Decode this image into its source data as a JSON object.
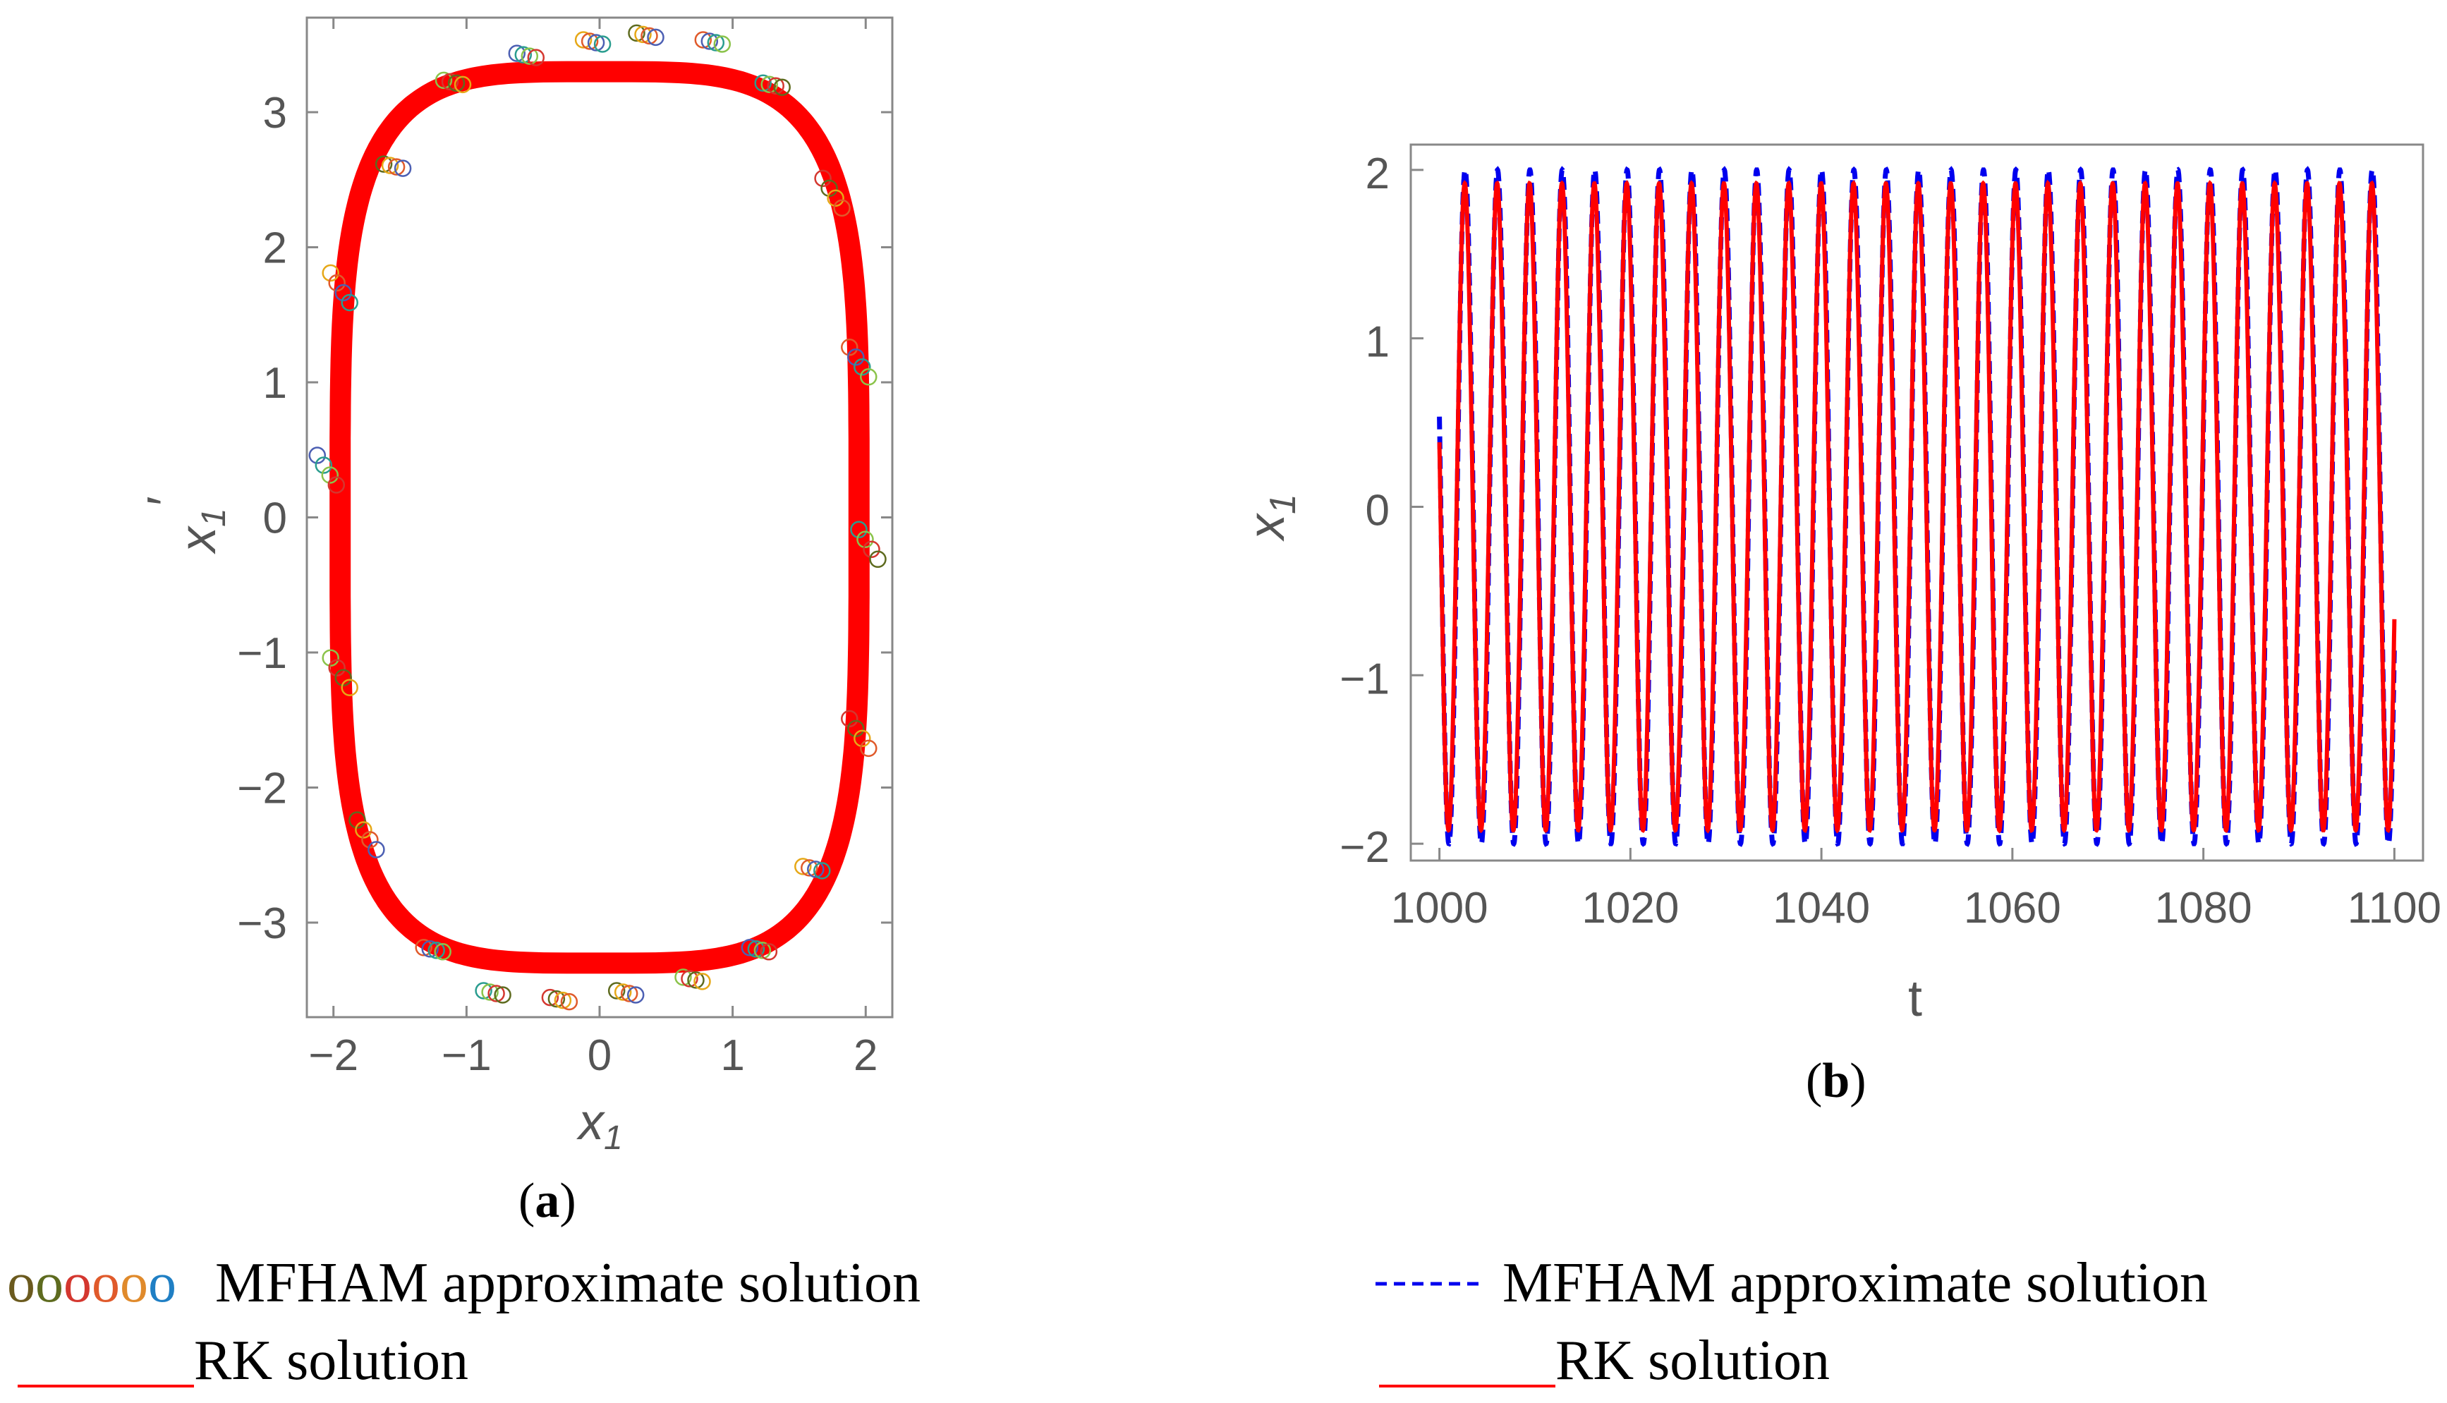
{
  "chart_data": [
    {
      "id": "a",
      "panel_label": "a",
      "type": "scatter",
      "xlabel": "x",
      "xlabel_sub": "1",
      "ylabel": "x",
      "ylabel_sub": "1",
      "ylabel_prime": "′",
      "xlim": [
        -2.2,
        2.2
      ],
      "ylim": [
        -3.7,
        3.7
      ],
      "xticks": [
        -2,
        -1,
        0,
        1,
        2
      ],
      "yticks": [
        3,
        2,
        1,
        0,
        -1,
        -2,
        -3
      ],
      "rk_curve": {
        "a": 1.95,
        "b": 3.3,
        "exponent": 4,
        "tilt": 0.25,
        "color": "#ff0000"
      },
      "marker_colors": [
        "#5e6b1f",
        "#e6a817",
        "#e05a2b",
        "#4c5fb3",
        "#2a9d8f",
        "#8bc34a",
        "#d4372f"
      ],
      "marker_groups": [
        {
          "x": 0.35,
          "y": 3.57
        },
        {
          "x": -0.05,
          "y": 3.52
        },
        {
          "x": 0.85,
          "y": 3.52
        },
        {
          "x": -0.55,
          "y": 3.42
        },
        {
          "x": 1.3,
          "y": 3.2
        },
        {
          "x": -1.1,
          "y": 3.22
        },
        {
          "x": 1.75,
          "y": 2.4
        },
        {
          "x": -1.55,
          "y": 2.6
        },
        {
          "x": -1.95,
          "y": 1.7
        },
        {
          "x": 1.95,
          "y": 1.15
        },
        {
          "x": -2.05,
          "y": 0.35
        },
        {
          "x": 2.02,
          "y": -0.2
        },
        {
          "x": -1.95,
          "y": -1.15
        },
        {
          "x": 1.95,
          "y": -1.6
        },
        {
          "x": -1.75,
          "y": -2.35
        },
        {
          "x": 1.6,
          "y": -2.6
        },
        {
          "x": -1.25,
          "y": -3.2
        },
        {
          "x": 1.2,
          "y": -3.2
        },
        {
          "x": -0.8,
          "y": -3.52
        },
        {
          "x": 0.7,
          "y": -3.42
        },
        {
          "x": -0.3,
          "y": -3.57
        },
        {
          "x": 0.2,
          "y": -3.52
        }
      ]
    },
    {
      "id": "b",
      "panel_label": "b",
      "type": "line",
      "xlabel": "t",
      "ylabel": "x",
      "ylabel_sub": "1",
      "xlim": [
        997,
        1103
      ],
      "ylim": [
        -2.1,
        2.15
      ],
      "xticks": [
        1000,
        1020,
        1040,
        1060,
        1080,
        1100
      ],
      "yticks": [
        2,
        1,
        0,
        -1,
        -2
      ],
      "t_range": [
        1000,
        1100
      ],
      "series": [
        {
          "style": "dashed",
          "color": "#0000ee",
          "amplitude": 2.0,
          "omega": 1.852,
          "phase": 1.3
        },
        {
          "style": "solid",
          "color": "#ff0000",
          "amplitude": 1.92,
          "omega": 1.852,
          "phase": 1.37
        }
      ]
    }
  ],
  "legend_a": {
    "marker_text": "oooooo",
    "marker_colors": [
      "#6b5a1e",
      "#5e6b1f",
      "#d4372f",
      "#e05a2b",
      "#e08a2b",
      "#1f7fc4"
    ],
    "mfham_label": "MFHAM approximate solution",
    "rk_label": "RK solution"
  },
  "legend_b": {
    "dash_color": "#0000ee",
    "line_color": "#ff0000",
    "mfham_label": "MFHAM approximate solution",
    "rk_label": "RK solution"
  }
}
